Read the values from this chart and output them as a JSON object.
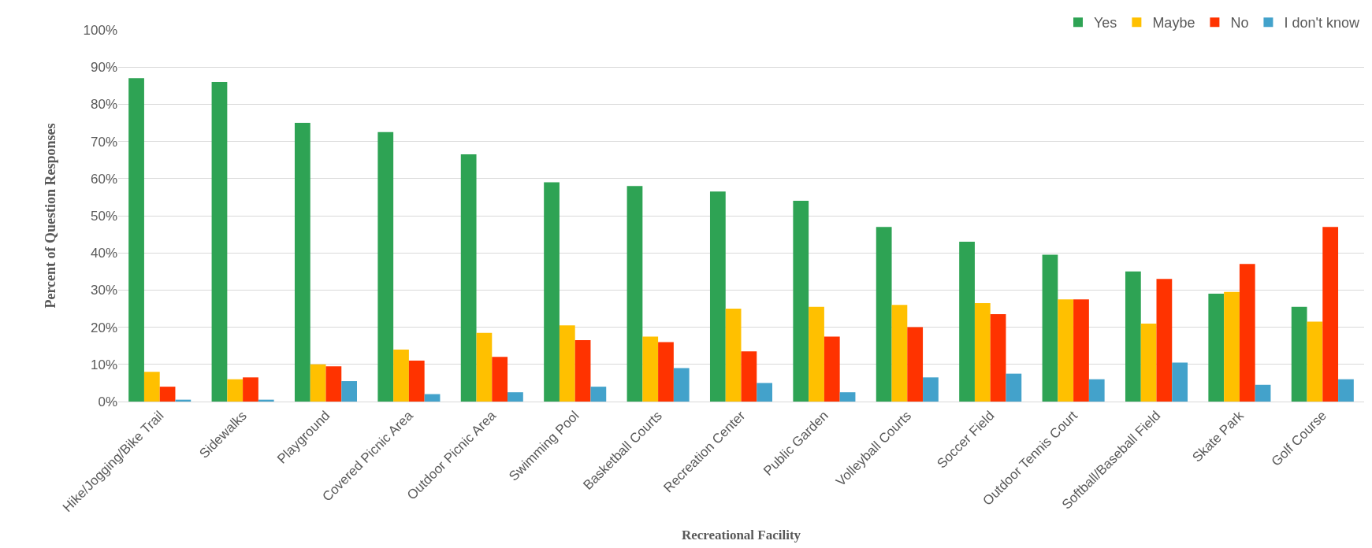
{
  "chart_data": {
    "type": "bar",
    "xlabel": "Recreational Facility",
    "ylabel": "Percent of Question Responses",
    "categories": [
      "Hike/Jogging/Bike Trail",
      "Sidewalks",
      "Playground",
      "Covered Picnic Area",
      "Outdoor Picnic Area",
      "Swimming Pool",
      "Basketball Courts",
      "Recreation Center",
      "Public Garden",
      "Volleyball Courts",
      "Soccer Field",
      "Outdoor Tennis Court",
      "Softball/Baseball Field",
      "Skate Park",
      "Golf Course"
    ],
    "series": [
      {
        "name": "Yes",
        "color": "#2ea354",
        "values": [
          87,
          86,
          75,
          72.5,
          66.5,
          59,
          58,
          56.5,
          54,
          47,
          43,
          39.5,
          35,
          29,
          25.5
        ]
      },
      {
        "name": "Maybe",
        "color": "#ffc000",
        "values": [
          8,
          6,
          10,
          14,
          18.5,
          20.5,
          17.5,
          25,
          25.5,
          26,
          26.5,
          27.5,
          21,
          29.5,
          21.5
        ]
      },
      {
        "name": "No",
        "color": "#ff3300",
        "values": [
          4,
          6.5,
          9.5,
          11,
          12,
          16.5,
          16,
          13.5,
          17.5,
          20,
          23.5,
          27.5,
          33,
          37,
          47
        ]
      },
      {
        "name": "I don't know",
        "color": "#43a2cb",
        "values": [
          0.5,
          0.5,
          5.5,
          2,
          2.5,
          4,
          9,
          5,
          2.5,
          6.5,
          7.5,
          6,
          10.5,
          4.5,
          6
        ]
      }
    ],
    "ylim": [
      0,
      100
    ],
    "yticks": [
      {
        "value": 0,
        "label": "0%"
      },
      {
        "value": 10,
        "label": "10%"
      },
      {
        "value": 20,
        "label": "20%"
      },
      {
        "value": 30,
        "label": "30%"
      },
      {
        "value": 40,
        "label": "40%"
      },
      {
        "value": 50,
        "label": "50%"
      },
      {
        "value": 60,
        "label": "60%"
      },
      {
        "value": 70,
        "label": "70%"
      },
      {
        "value": 80,
        "label": "80%"
      },
      {
        "value": 90,
        "label": "90%"
      },
      {
        "value": 100,
        "label": "100%"
      }
    ],
    "grid": "y",
    "legend": "top right"
  }
}
